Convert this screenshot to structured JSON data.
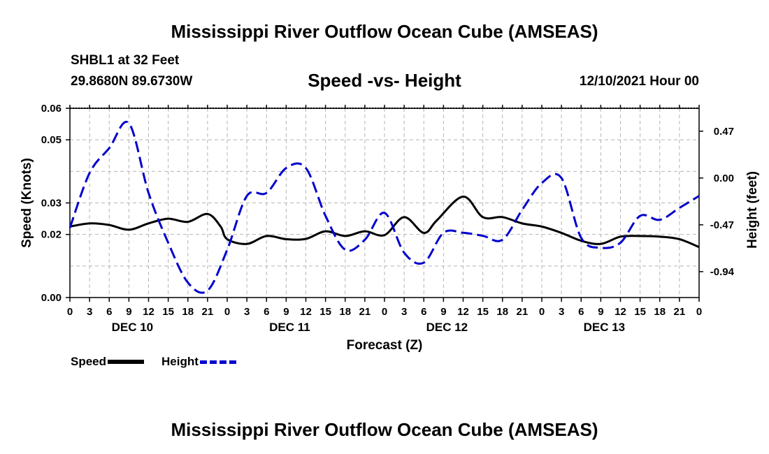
{
  "page": {
    "title": "Mississippi River Outflow Ocean Cube (AMSEAS)",
    "footer_title": "Mississippi River Outflow Ocean Cube (AMSEAS)",
    "station": "SHBL1 at 32 Feet",
    "location": "29.8680N  89.6730W",
    "subtitle": "Speed -vs- Height",
    "date": "12/10/2021 Hour 00"
  },
  "legend": {
    "speed_label": "Speed",
    "height_label": "Height"
  },
  "chart_data": {
    "type": "line",
    "title": "Speed -vs- Height",
    "xlabel": "Forecast (Z)",
    "ylabel": "Speed (Knots)",
    "y2label": "Height (feet)",
    "x_range_hours": [
      0,
      96
    ],
    "ylim": [
      0.0,
      0.06
    ],
    "y_ticks": [
      0.0,
      0.02,
      0.03,
      0.05,
      0.06
    ],
    "y_tick_labels": [
      "0.00",
      "0.02",
      "0.03",
      "0.05",
      "0.06"
    ],
    "y2lim": [
      -1.2,
      0.7
    ],
    "y2_ticks": [
      0.47,
      0.0,
      -0.47,
      -0.94
    ],
    "y2_tick_labels": [
      "0.47",
      "0.00",
      "-0.47",
      "-0.94"
    ],
    "x_ticks": [
      0,
      3,
      6,
      9,
      12,
      15,
      18,
      21,
      24,
      27,
      30,
      33,
      36,
      39,
      42,
      45,
      48,
      51,
      54,
      57,
      60,
      63,
      66,
      69,
      72,
      75,
      78,
      81,
      84,
      87,
      90,
      93,
      96
    ],
    "x_tick_labels": [
      "0",
      "3",
      "6",
      "9",
      "12",
      "15",
      "18",
      "21",
      "0",
      "3",
      "6",
      "9",
      "12",
      "15",
      "18",
      "21",
      "0",
      "3",
      "6",
      "9",
      "12",
      "15",
      "18",
      "21",
      "0",
      "3",
      "6",
      "9",
      "12",
      "15",
      "18",
      "21",
      "0"
    ],
    "day_labels": [
      {
        "hour": 9,
        "label": "DEC 10"
      },
      {
        "hour": 33,
        "label": "DEC 11"
      },
      {
        "hour": 57,
        "label": "DEC 12"
      },
      {
        "hour": 81,
        "label": "DEC 13"
      }
    ],
    "grid": true,
    "series": [
      {
        "name": "Speed",
        "axis": "left",
        "color": "#000000",
        "dash": false,
        "x": [
          0,
          3,
          6,
          9,
          12,
          15,
          18,
          21,
          23,
          24,
          27,
          30,
          33,
          36,
          39,
          42,
          45,
          48,
          51,
          54,
          56,
          60,
          63,
          66,
          69,
          72,
          75,
          78,
          81,
          84,
          87,
          90,
          93,
          96
        ],
        "y": [
          0.0225,
          0.0235,
          0.023,
          0.0215,
          0.0235,
          0.025,
          0.024,
          0.0265,
          0.0225,
          0.0185,
          0.017,
          0.0195,
          0.0185,
          0.0186,
          0.021,
          0.0195,
          0.021,
          0.0198,
          0.0255,
          0.0205,
          0.0245,
          0.032,
          0.0255,
          0.0255,
          0.0235,
          0.0225,
          0.0205,
          0.018,
          0.017,
          0.0193,
          0.0195,
          0.0193,
          0.0185,
          0.016
        ]
      },
      {
        "name": "Height",
        "axis": "right",
        "color": "#0000cc",
        "dash": true,
        "x": [
          0,
          3,
          6,
          9,
          12,
          15,
          18,
          21,
          24,
          27,
          30,
          33,
          36,
          39,
          42,
          45,
          48,
          51,
          54,
          57,
          60,
          63,
          66,
          69,
          72,
          75,
          78,
          81,
          84,
          87,
          90,
          93,
          96
        ],
        "y": [
          -0.5,
          0.05,
          0.3,
          0.55,
          -0.15,
          -0.65,
          -1.05,
          -1.13,
          -0.72,
          -0.18,
          -0.15,
          0.1,
          0.1,
          -0.38,
          -0.72,
          -0.62,
          -0.35,
          -0.75,
          -0.85,
          -0.55,
          -0.55,
          -0.58,
          -0.62,
          -0.32,
          -0.05,
          0.0,
          -0.6,
          -0.7,
          -0.65,
          -0.38,
          -0.42,
          -0.3,
          -0.18
        ]
      }
    ]
  }
}
